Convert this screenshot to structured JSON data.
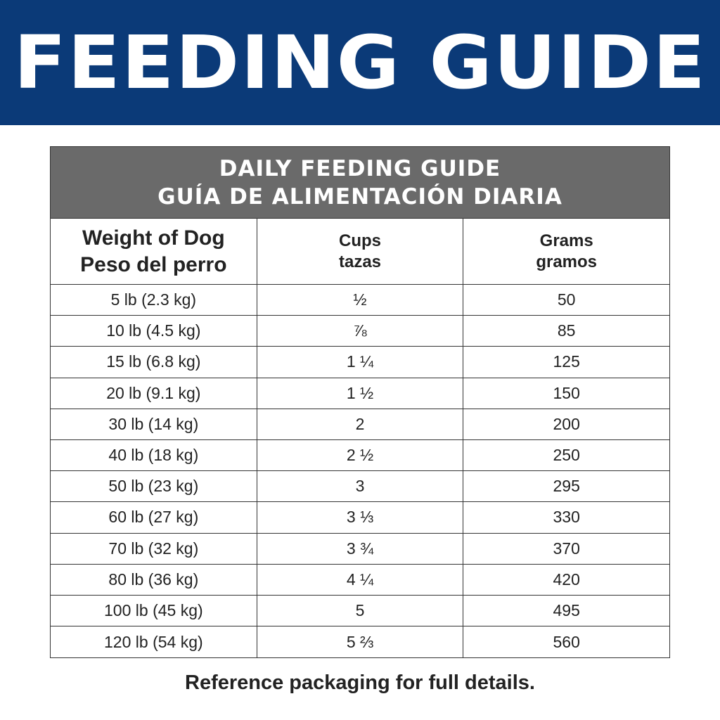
{
  "banner": {
    "title": "FEEDING GUIDE"
  },
  "table": {
    "title_en": "DAILY FEEDING GUIDE",
    "title_es": "GUÍA DE ALIMENTACIÓN DIARIA",
    "headers": [
      {
        "en": "Weight of Dog",
        "es": "Peso del perro"
      },
      {
        "en": "Cups",
        "es": "tazas"
      },
      {
        "en": "Grams",
        "es": "gramos"
      }
    ],
    "rows": [
      [
        "5 lb (2.3 kg)",
        "½",
        "50"
      ],
      [
        "10 lb (4.5 kg)",
        "⅞",
        "85"
      ],
      [
        "15 lb (6.8 kg)",
        "1 ¼",
        "125"
      ],
      [
        "20 lb (9.1 kg)",
        "1 ½",
        "150"
      ],
      [
        "30 lb (14 kg)",
        "2",
        "200"
      ],
      [
        "40 lb (18 kg)",
        "2 ½",
        "250"
      ],
      [
        "50 lb (23 kg)",
        "3",
        "295"
      ],
      [
        "60 lb (27 kg)",
        "3 ⅓",
        "330"
      ],
      [
        "70 lb (32 kg)",
        "3 ¾",
        "370"
      ],
      [
        "80 lb (36 kg)",
        "4 ¼",
        "420"
      ],
      [
        "100 lb (45 kg)",
        "5",
        "495"
      ],
      [
        "120 lb (54 kg)",
        "5 ⅔",
        "560"
      ]
    ]
  },
  "footer": {
    "note": "Reference packaging for full details."
  },
  "colors": {
    "banner": "#0b3a78",
    "table_header": "#6a6a6a"
  }
}
